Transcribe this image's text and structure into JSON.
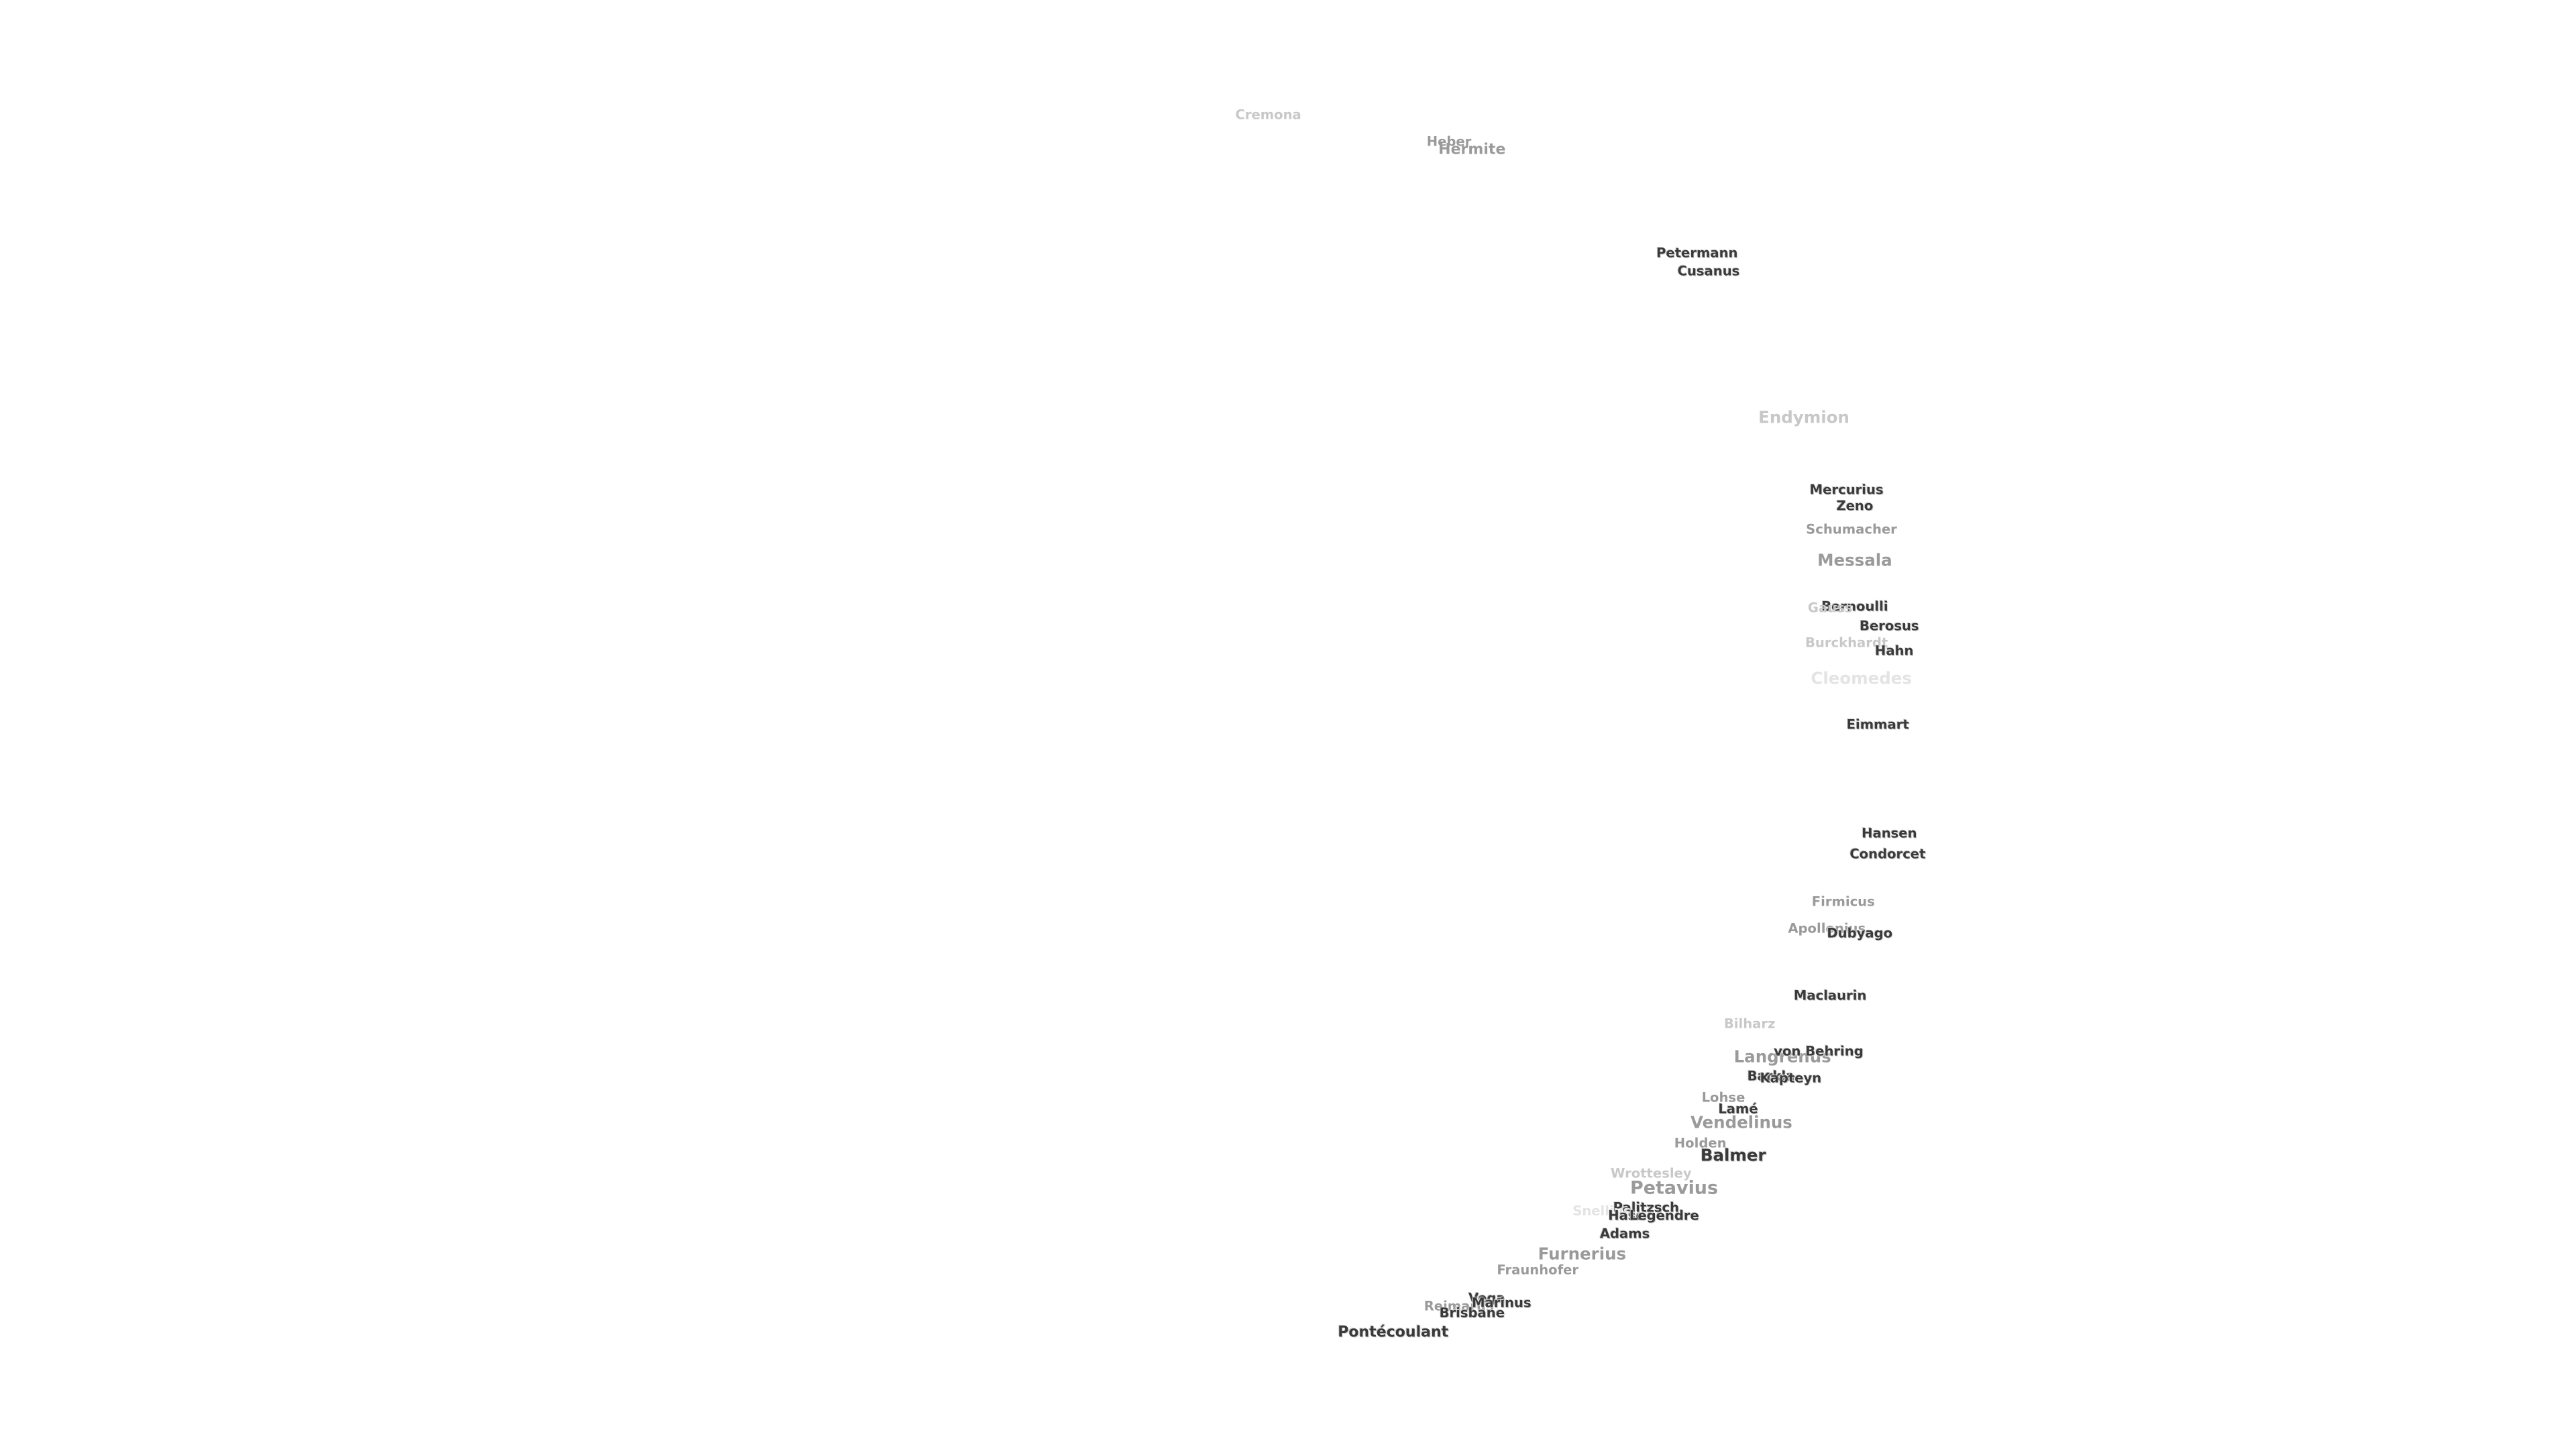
{
  "labels": [
    "Cremona",
    "Heber",
    "Hermite",
    "Petermann",
    "Cusanus",
    "Endymion",
    "Mercurius",
    "Zeno",
    "Schumacher",
    "Messala",
    "Bernoulli",
    "Gauss",
    "Berosus",
    "Burckhardt",
    "Hahn",
    "Cleomedes",
    "Eimmart",
    "Hansen",
    "Condorcet",
    "Firmicus",
    "Apollonius",
    "Dubyago",
    "Maclaurin",
    "Bilharz",
    "Langrenus",
    "von Behring",
    "Barkla",
    "Kapteyn",
    "Lohse",
    "Lamé",
    "Vendelinus",
    "Holden",
    "Balmer",
    "Wrottesley",
    "Petavius",
    "Palitzsch",
    "Snellius",
    "Hase",
    "Legendre",
    "Adams",
    "Furnerius",
    "Fraunhofer",
    "Vega",
    "Reimarus",
    "Marinus",
    "Brisbane",
    "Pontécoulant"
  ]
}
